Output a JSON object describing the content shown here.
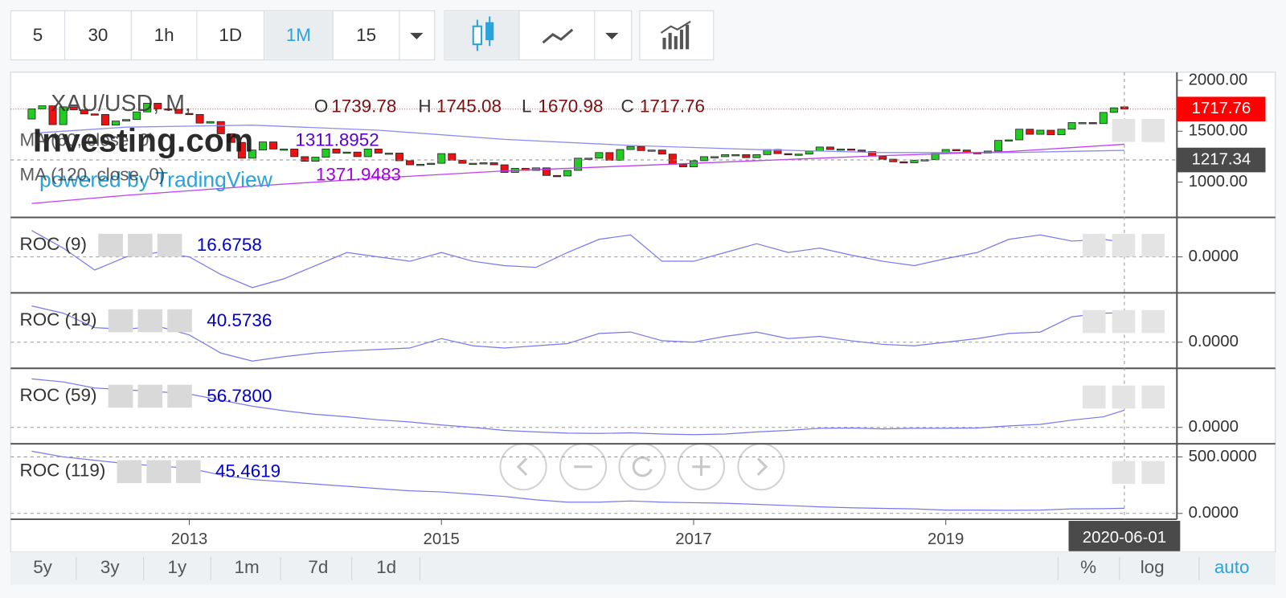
{
  "toolbar": {
    "intervals": [
      "5",
      "30",
      "1h",
      "1D",
      "1M",
      "15"
    ],
    "active_interval": "1M"
  },
  "watermark": {
    "brand": "Investing.com",
    "powered": "powered by TradingView"
  },
  "time_axis": {
    "xlim": [
      "2011-08",
      "2020-11"
    ],
    "xticks": [
      2013,
      2015,
      2017,
      2019
    ],
    "crosshair_date": "2020-06-01"
  },
  "range_bar": {
    "ranges": [
      "5y",
      "3y",
      "1y",
      "1m",
      "7d",
      "1d"
    ],
    "options": [
      "%",
      "log",
      "auto"
    ],
    "active_option": "auto"
  },
  "chart_data": [
    {
      "type": "candlestick",
      "title": "XAU/USD, M,",
      "ohlc_labels": [
        "O",
        "H",
        "L",
        "C"
      ],
      "ohlc": [
        1739.78,
        1745.08,
        1670.98,
        1717.76
      ],
      "up_color": "#22cc22",
      "down_color": "#ee1111",
      "x": [
        "2011-10",
        "2011-11",
        "2011-12",
        "2012-01",
        "2012-02",
        "2012-03",
        "2012-04",
        "2012-05",
        "2012-06",
        "2012-07",
        "2012-08",
        "2012-09",
        "2012-10",
        "2012-11",
        "2012-12",
        "2013-01",
        "2013-02",
        "2013-03",
        "2013-04",
        "2013-05",
        "2013-06",
        "2013-07",
        "2013-08",
        "2013-09",
        "2013-10",
        "2013-11",
        "2013-12",
        "2014-01",
        "2014-02",
        "2014-03",
        "2014-04",
        "2014-05",
        "2014-06",
        "2014-07",
        "2014-08",
        "2014-09",
        "2014-10",
        "2014-11",
        "2014-12",
        "2015-01",
        "2015-02",
        "2015-03",
        "2015-04",
        "2015-05",
        "2015-06",
        "2015-07",
        "2015-08",
        "2015-09",
        "2015-10",
        "2015-11",
        "2015-12",
        "2016-01",
        "2016-02",
        "2016-03",
        "2016-04",
        "2016-05",
        "2016-06",
        "2016-07",
        "2016-08",
        "2016-09",
        "2016-10",
        "2016-11",
        "2016-12",
        "2017-01",
        "2017-02",
        "2017-03",
        "2017-04",
        "2017-05",
        "2017-06",
        "2017-07",
        "2017-08",
        "2017-09",
        "2017-10",
        "2017-11",
        "2017-12",
        "2018-01",
        "2018-02",
        "2018-03",
        "2018-04",
        "2018-05",
        "2018-06",
        "2018-07",
        "2018-08",
        "2018-09",
        "2018-10",
        "2018-11",
        "2018-12",
        "2019-01",
        "2019-02",
        "2019-03",
        "2019-04",
        "2019-05",
        "2019-06",
        "2019-07",
        "2019-08",
        "2019-09",
        "2019-10",
        "2019-11",
        "2019-12",
        "2020-01",
        "2020-02",
        "2020-03",
        "2020-04",
        "2020-05",
        "2020-06"
      ],
      "open": [
        1620,
        1720,
        1750,
        1565,
        1740,
        1710,
        1670,
        1665,
        1560,
        1600,
        1615,
        1690,
        1775,
        1720,
        1715,
        1675,
        1665,
        1580,
        1595,
        1475,
        1390,
        1235,
        1315,
        1395,
        1325,
        1325,
        1250,
        1205,
        1245,
        1325,
        1285,
        1295,
        1250,
        1325,
        1285,
        1285,
        1210,
        1170,
        1175,
        1185,
        1280,
        1215,
        1185,
        1185,
        1190,
        1170,
        1095,
        1135,
        1115,
        1140,
        1065,
        1060,
        1115,
        1235,
        1235,
        1290,
        1215,
        1320,
        1350,
        1310,
        1315,
        1275,
        1175,
        1150,
        1210,
        1250,
        1250,
        1270,
        1270,
        1240,
        1270,
        1320,
        1280,
        1270,
        1275,
        1305,
        1345,
        1320,
        1325,
        1315,
        1300,
        1255,
        1225,
        1200,
        1190,
        1215,
        1220,
        1280,
        1320,
        1315,
        1290,
        1285,
        1305,
        1410,
        1415,
        1520,
        1470,
        1510,
        1465,
        1520,
        1585,
        1585,
        1575,
        1685,
        1739.78
      ],
      "close": [
        1720,
        1750,
        1565,
        1740,
        1710,
        1670,
        1665,
        1560,
        1600,
        1615,
        1690,
        1775,
        1720,
        1715,
        1675,
        1665,
        1580,
        1595,
        1475,
        1390,
        1235,
        1315,
        1395,
        1325,
        1325,
        1250,
        1205,
        1245,
        1325,
        1285,
        1295,
        1250,
        1325,
        1285,
        1285,
        1210,
        1170,
        1175,
        1185,
        1280,
        1215,
        1185,
        1185,
        1190,
        1170,
        1095,
        1135,
        1115,
        1140,
        1065,
        1060,
        1115,
        1235,
        1235,
        1290,
        1215,
        1320,
        1350,
        1310,
        1315,
        1275,
        1175,
        1150,
        1210,
        1250,
        1250,
        1270,
        1270,
        1240,
        1270,
        1320,
        1280,
        1270,
        1275,
        1305,
        1345,
        1320,
        1325,
        1315,
        1300,
        1255,
        1225,
        1200,
        1190,
        1215,
        1220,
        1280,
        1320,
        1315,
        1290,
        1285,
        1305,
        1410,
        1415,
        1520,
        1470,
        1510,
        1465,
        1520,
        1585,
        1585,
        1575,
        1685,
        1730,
        1717.76
      ],
      "series": [
        {
          "name": "MA (60, close, 0)",
          "color": "#8c8cf2",
          "label_color": "#5a00d0",
          "x": [
            "2011-10",
            "2012-07",
            "2013-07",
            "2014-07",
            "2015-07",
            "2016-07",
            "2017-07",
            "2018-07",
            "2019-07",
            "2020-06"
          ],
          "values": [
            1480,
            1540,
            1560,
            1510,
            1420,
            1360,
            1320,
            1290,
            1290,
            1311.8952
          ]
        },
        {
          "name": "MA (120, close, 0)",
          "color": "#c040f0",
          "label_color": "#a000e0",
          "x": [
            "2011-10",
            "2012-07",
            "2013-07",
            "2014-07",
            "2015-07",
            "2016-07",
            "2017-07",
            "2018-07",
            "2019-07",
            "2020-06"
          ],
          "values": [
            790,
            870,
            960,
            1040,
            1110,
            1160,
            1210,
            1260,
            1300,
            1371.9483
          ]
        }
      ],
      "ylim": [
        653,
        2080
      ],
      "yticks": [
        {
          "value": 1000,
          "label": "1000.00"
        },
        {
          "value": 1500,
          "label": "1500.00"
        },
        {
          "value": 2000,
          "label": "2000.00"
        }
      ],
      "crosshair_price": 1217.34
    },
    {
      "type": "line",
      "title": "ROC (9)",
      "color": "#7777ee",
      "value_color": "#0000cc",
      "x": [
        "2011-10",
        "2012-01",
        "2012-04",
        "2012-07",
        "2012-10",
        "2013-01",
        "2013-04",
        "2013-07",
        "2013-10",
        "2014-01",
        "2014-04",
        "2014-07",
        "2014-10",
        "2015-01",
        "2015-04",
        "2015-07",
        "2015-10",
        "2016-01",
        "2016-04",
        "2016-07",
        "2016-10",
        "2017-01",
        "2017-04",
        "2017-07",
        "2017-10",
        "2018-01",
        "2018-04",
        "2018-07",
        "2018-10",
        "2019-01",
        "2019-04",
        "2019-07",
        "2019-10",
        "2020-01",
        "2020-04",
        "2020-06"
      ],
      "values": [
        30,
        10,
        -15,
        0,
        5,
        0,
        -20,
        -35,
        -25,
        -10,
        5,
        0,
        -5,
        5,
        -5,
        -10,
        -12,
        5,
        20,
        25,
        -5,
        -5,
        5,
        15,
        5,
        10,
        2,
        -5,
        -10,
        -2,
        5,
        20,
        25,
        18,
        20,
        16.6758
      ],
      "last_value": 16.6758,
      "ylim": [
        -41,
        45
      ],
      "yticks": [
        {
          "value": 0,
          "label": "0.0000"
        }
      ]
    },
    {
      "type": "line",
      "title": "ROC (19)",
      "color": "#7777ee",
      "value_color": "#0000cc",
      "x": [
        "2011-10",
        "2012-01",
        "2012-04",
        "2012-07",
        "2012-10",
        "2013-01",
        "2013-04",
        "2013-07",
        "2013-10",
        "2014-01",
        "2014-04",
        "2014-07",
        "2014-10",
        "2015-01",
        "2015-04",
        "2015-07",
        "2015-10",
        "2016-01",
        "2016-04",
        "2016-07",
        "2016-10",
        "2017-01",
        "2017-04",
        "2017-07",
        "2017-10",
        "2018-01",
        "2018-04",
        "2018-07",
        "2018-10",
        "2019-01",
        "2019-04",
        "2019-07",
        "2019-10",
        "2020-01",
        "2020-04",
        "2020-06"
      ],
      "values": [
        50,
        40,
        20,
        18,
        22,
        10,
        -15,
        -26,
        -20,
        -15,
        -12,
        -10,
        -8,
        5,
        -5,
        -8,
        -5,
        -2,
        12,
        14,
        2,
        0,
        8,
        14,
        5,
        8,
        2,
        -3,
        -5,
        0,
        5,
        12,
        14,
        35,
        40,
        40.5736
      ],
      "last_value": 40.5736,
      "ylim": [
        -36,
        68
      ],
      "yticks": [
        {
          "value": 0,
          "label": "0.0000"
        }
      ]
    },
    {
      "type": "line",
      "title": "ROC (59)",
      "color": "#7777ee",
      "value_color": "#0000cc",
      "x": [
        "2011-10",
        "2012-01",
        "2012-04",
        "2012-07",
        "2012-10",
        "2013-01",
        "2013-04",
        "2013-07",
        "2013-10",
        "2014-01",
        "2014-04",
        "2014-07",
        "2014-10",
        "2015-01",
        "2015-04",
        "2015-07",
        "2015-10",
        "2016-01",
        "2016-04",
        "2016-07",
        "2016-10",
        "2017-01",
        "2017-04",
        "2017-07",
        "2017-10",
        "2018-01",
        "2018-04",
        "2018-07",
        "2018-10",
        "2019-01",
        "2019-04",
        "2019-07",
        "2019-10",
        "2020-01",
        "2020-04",
        "2020-06"
      ],
      "values": [
        160,
        150,
        130,
        124,
        118,
        110,
        90,
        70,
        55,
        43,
        35,
        25,
        18,
        8,
        0,
        -10,
        -15,
        -19,
        -20,
        -18,
        -22,
        -24,
        -22,
        -15,
        -10,
        -3,
        -2,
        -5,
        -3,
        -3,
        -2,
        5,
        10,
        24,
        35,
        56.78
      ],
      "last_value": {
        "value": 56.78,
        "label": "56.7800"
      },
      "ylim": [
        -54,
        195
      ],
      "yticks": [
        {
          "value": 0,
          "label": "0.0000"
        }
      ]
    },
    {
      "type": "line",
      "title": "ROC (119)",
      "color": "#7777ee",
      "value_color": "#0000cc",
      "x": [
        "2011-10",
        "2012-01",
        "2012-04",
        "2012-07",
        "2012-10",
        "2013-01",
        "2013-04",
        "2013-07",
        "2013-10",
        "2014-01",
        "2014-04",
        "2014-07",
        "2014-10",
        "2015-01",
        "2015-04",
        "2015-07",
        "2015-10",
        "2016-01",
        "2016-04",
        "2016-07",
        "2016-10",
        "2017-01",
        "2017-04",
        "2017-07",
        "2017-10",
        "2018-01",
        "2018-04",
        "2018-07",
        "2018-10",
        "2019-01",
        "2019-04",
        "2019-07",
        "2019-10",
        "2020-01",
        "2020-04",
        "2020-06"
      ],
      "values": [
        550,
        500,
        470,
        440,
        420,
        400,
        340,
        300,
        280,
        260,
        240,
        220,
        200,
        190,
        170,
        150,
        120,
        100,
        100,
        110,
        100,
        95,
        90,
        80,
        70,
        58,
        50,
        45,
        40,
        30,
        30,
        28,
        30,
        40,
        42,
        45.4619
      ],
      "last_value": 45.4619,
      "ylim": [
        -51,
        616
      ],
      "yticks": [
        {
          "value": 0,
          "label": "0.0000"
        },
        {
          "value": 500,
          "label": "500.0000"
        }
      ]
    }
  ]
}
